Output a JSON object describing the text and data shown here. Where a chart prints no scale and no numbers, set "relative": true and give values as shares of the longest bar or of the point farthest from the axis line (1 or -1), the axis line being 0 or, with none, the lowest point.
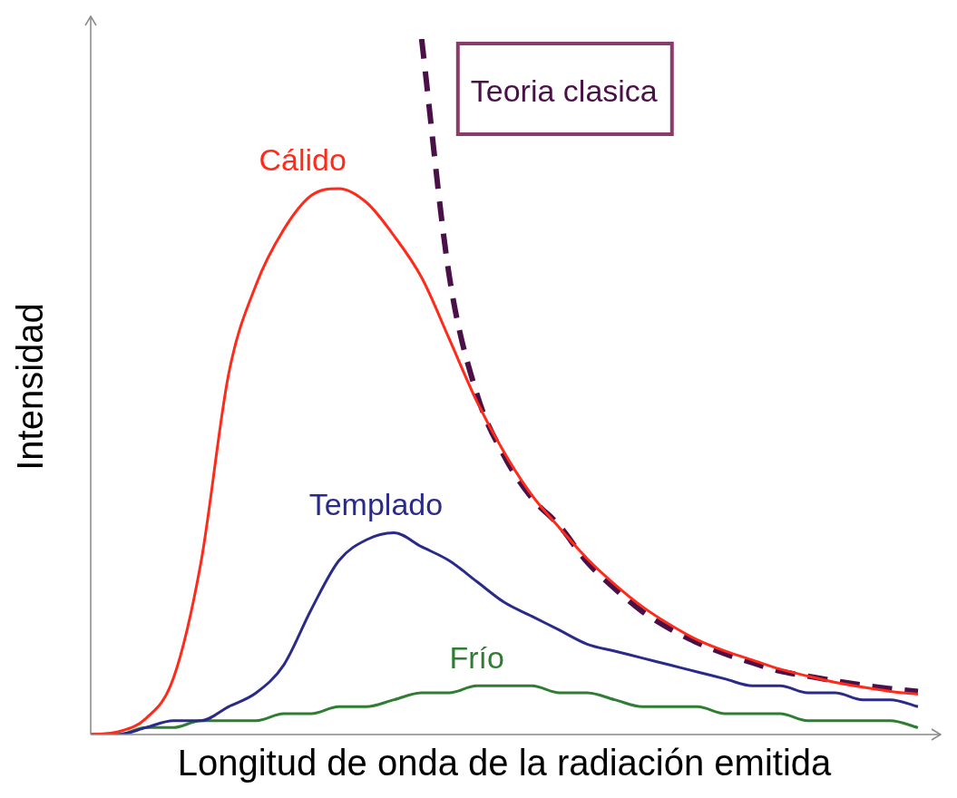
{
  "chart_data": {
    "type": "line",
    "relative": true,
    "xlabel": "Longitud de onda de la radiación emitida",
    "ylabel": "Intensidad",
    "legend": false,
    "grid": false,
    "marker": "none",
    "categories": [
      null,
      null,
      null,
      null,
      null,
      null,
      null,
      null,
      null,
      null,
      null,
      null,
      null,
      null,
      null,
      null,
      null,
      null,
      null,
      null,
      null,
      null,
      null,
      null,
      null,
      null,
      null,
      null,
      null,
      null,
      null
    ],
    "series": [
      {
        "name": "Cálido",
        "color": "#ff2a1a",
        "values": [
          0,
          0.004,
          0.023,
          0.081,
          0.248,
          0.518,
          0.647,
          0.726,
          0.775,
          0.785,
          0.765,
          0.717,
          0.657,
          0.569,
          0.479,
          0.405,
          0.344,
          0.297,
          0.253,
          0.216,
          0.184,
          0.158,
          0.136,
          0.12,
          0.107,
          0.094,
          0.084,
          0.075,
          0.068,
          0.062,
          0.058
        ]
      },
      {
        "name": "Templado",
        "color": "#2a2a8a",
        "values": [
          0,
          0,
          0.01,
          0.02,
          0.02,
          0.04,
          0.06,
          0.1,
          0.18,
          0.25,
          0.28,
          0.29,
          0.27,
          0.25,
          0.22,
          0.19,
          0.17,
          0.15,
          0.13,
          0.12,
          0.11,
          0.1,
          0.09,
          0.08,
          0.07,
          0.07,
          0.06,
          0.06,
          0.05,
          0.05,
          0.04
        ]
      },
      {
        "name": "Frío",
        "color": "#2e7d32",
        "values": [
          0,
          0,
          0.01,
          0.01,
          0.02,
          0.02,
          0.02,
          0.03,
          0.03,
          0.04,
          0.04,
          0.05,
          0.06,
          0.06,
          0.07,
          0.07,
          0.07,
          0.06,
          0.06,
          0.05,
          0.04,
          0.04,
          0.04,
          0.03,
          0.03,
          0.03,
          0.02,
          0.02,
          0.02,
          0.02,
          0.01
        ]
      },
      {
        "name": "Teoria clasica",
        "color": "#4a1048",
        "line_style": "dashed",
        "values": [
          null,
          null,
          null,
          null,
          null,
          null,
          null,
          null,
          null,
          null,
          null,
          null,
          1,
          0.66,
          0.49,
          0.4,
          0.34,
          0.3,
          0.248,
          0.21,
          0.177,
          0.152,
          0.132,
          0.116,
          0.103,
          0.091,
          0.084,
          0.077,
          0.071,
          0.066,
          0.062
        ]
      }
    ]
  }
}
